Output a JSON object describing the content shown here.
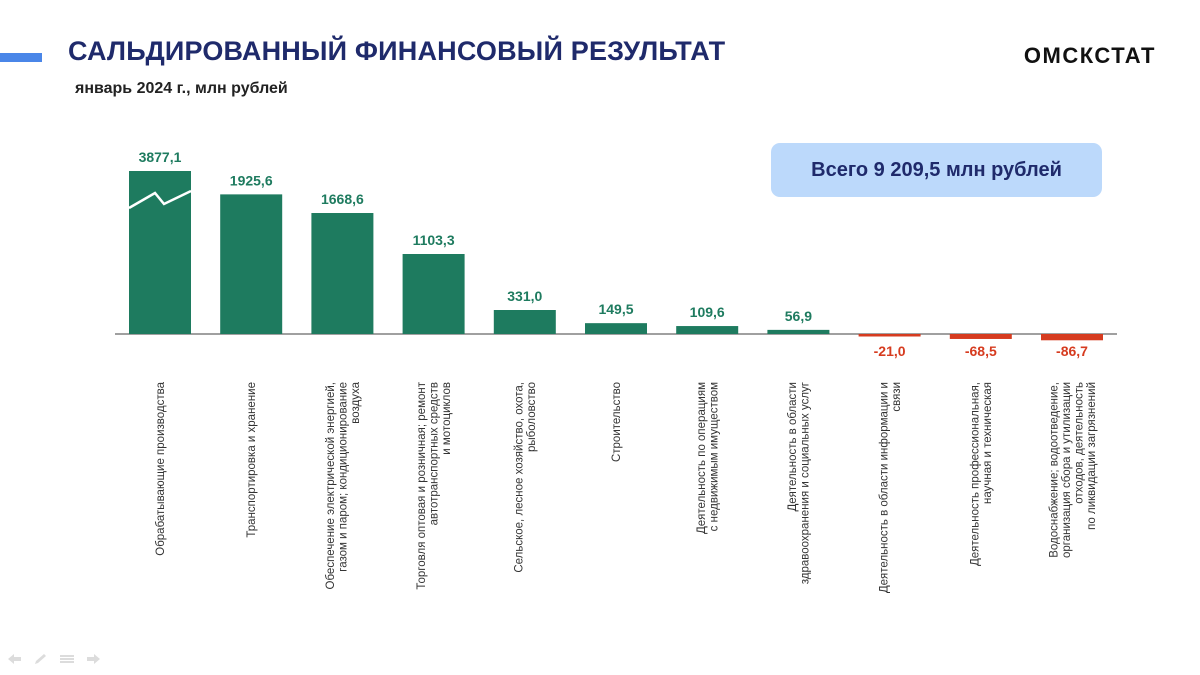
{
  "header": {
    "title": "САЛЬДИРОВАННЫЙ ФИНАНСОВЫЙ РЕЗУЛЬТАТ",
    "subtitle": "январь 2024 г., млн рублей",
    "brand": "ОМСКСТАТ"
  },
  "total_box": "Всего 9 209,5 млн рублей",
  "colors": {
    "positive": "#1e7b5f",
    "negative": "#d63b1f",
    "axis": "#808080",
    "title": "#1f2a6b",
    "accent": "#4a86e8",
    "total_box_bg": "#bcd9fb"
  },
  "nav_icons": [
    "arrow-left-icon",
    "pen-icon",
    "menu-icon",
    "arrow-right-icon"
  ],
  "chart_data": {
    "type": "bar",
    "axis_break_on_first_bar": true,
    "grid": false,
    "legend": "none",
    "categories": [
      [
        "Обрабатывающие производства"
      ],
      [
        "Транспортировка и хранение"
      ],
      [
        "Обеспечение электрической энергией,",
        "газом и паром; кондиционирование",
        "воздуха"
      ],
      [
        "Торговля оптовая и розничная; ремонт",
        "автотранспортных средств",
        "и мотоциклов"
      ],
      [
        "Сельское, лесное хозяйство, охота,",
        "рыболовство"
      ],
      [
        "Строительство"
      ],
      [
        "Деятельность по операциям",
        "с недвижимым имуществом"
      ],
      [
        "Деятельность в области",
        "здравоохранения и социальных услуг"
      ],
      [
        "Деятельность в области информации и",
        "связи"
      ],
      [
        "Деятельность профессиональная,",
        "научная и техническая"
      ],
      [
        "Водоснабжение; водоотведение,",
        "организация сбора и утилизации",
        "отходов, деятельность",
        "по ликвидации загрязнений"
      ]
    ],
    "values": [
      3877.1,
      1925.6,
      1668.6,
      1103.3,
      331.0,
      149.5,
      109.6,
      56.9,
      -21.0,
      -68.5,
      -86.7
    ],
    "labels": [
      "3877,1",
      "1925,6",
      "1668,6",
      "1103,3",
      "331,0",
      "149,5",
      "109,6",
      "56,9",
      "-21,0",
      "-68,5",
      "-86,7"
    ]
  }
}
